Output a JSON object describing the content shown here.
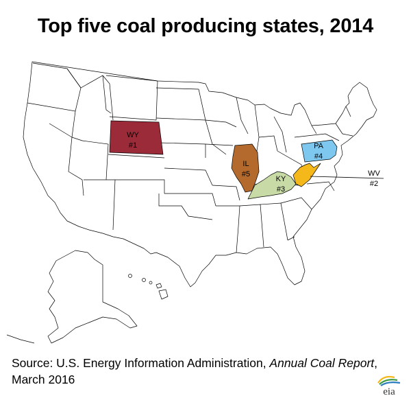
{
  "title": "Top five coal producing states, 2014",
  "source": {
    "prefix": "Source: U.S. Energy Information Administration, ",
    "publication": "Annual Coal Report",
    "suffix": ", March 2016"
  },
  "logo_text": "eia",
  "colors": {
    "WY": "#9b2b39",
    "IL": "#b36a2c",
    "KY": "#c8dba6",
    "PA": "#7ec8f0",
    "WV": "#f4b81b",
    "other": "#ffffff"
  },
  "highlighted_states": [
    {
      "abbr": "WY",
      "rank": 1,
      "abbr_label": "WY",
      "rank_label": "#1"
    },
    {
      "abbr": "WV",
      "rank": 2,
      "abbr_label": "WV",
      "rank_label": "#2"
    },
    {
      "abbr": "KY",
      "rank": 3,
      "abbr_label": "KY",
      "rank_label": "#3"
    },
    {
      "abbr": "PA",
      "rank": 4,
      "abbr_label": "PA",
      "rank_label": "#4"
    },
    {
      "abbr": "IL",
      "rank": 5,
      "abbr_label": "IL",
      "rank_label": "#5"
    }
  ]
}
